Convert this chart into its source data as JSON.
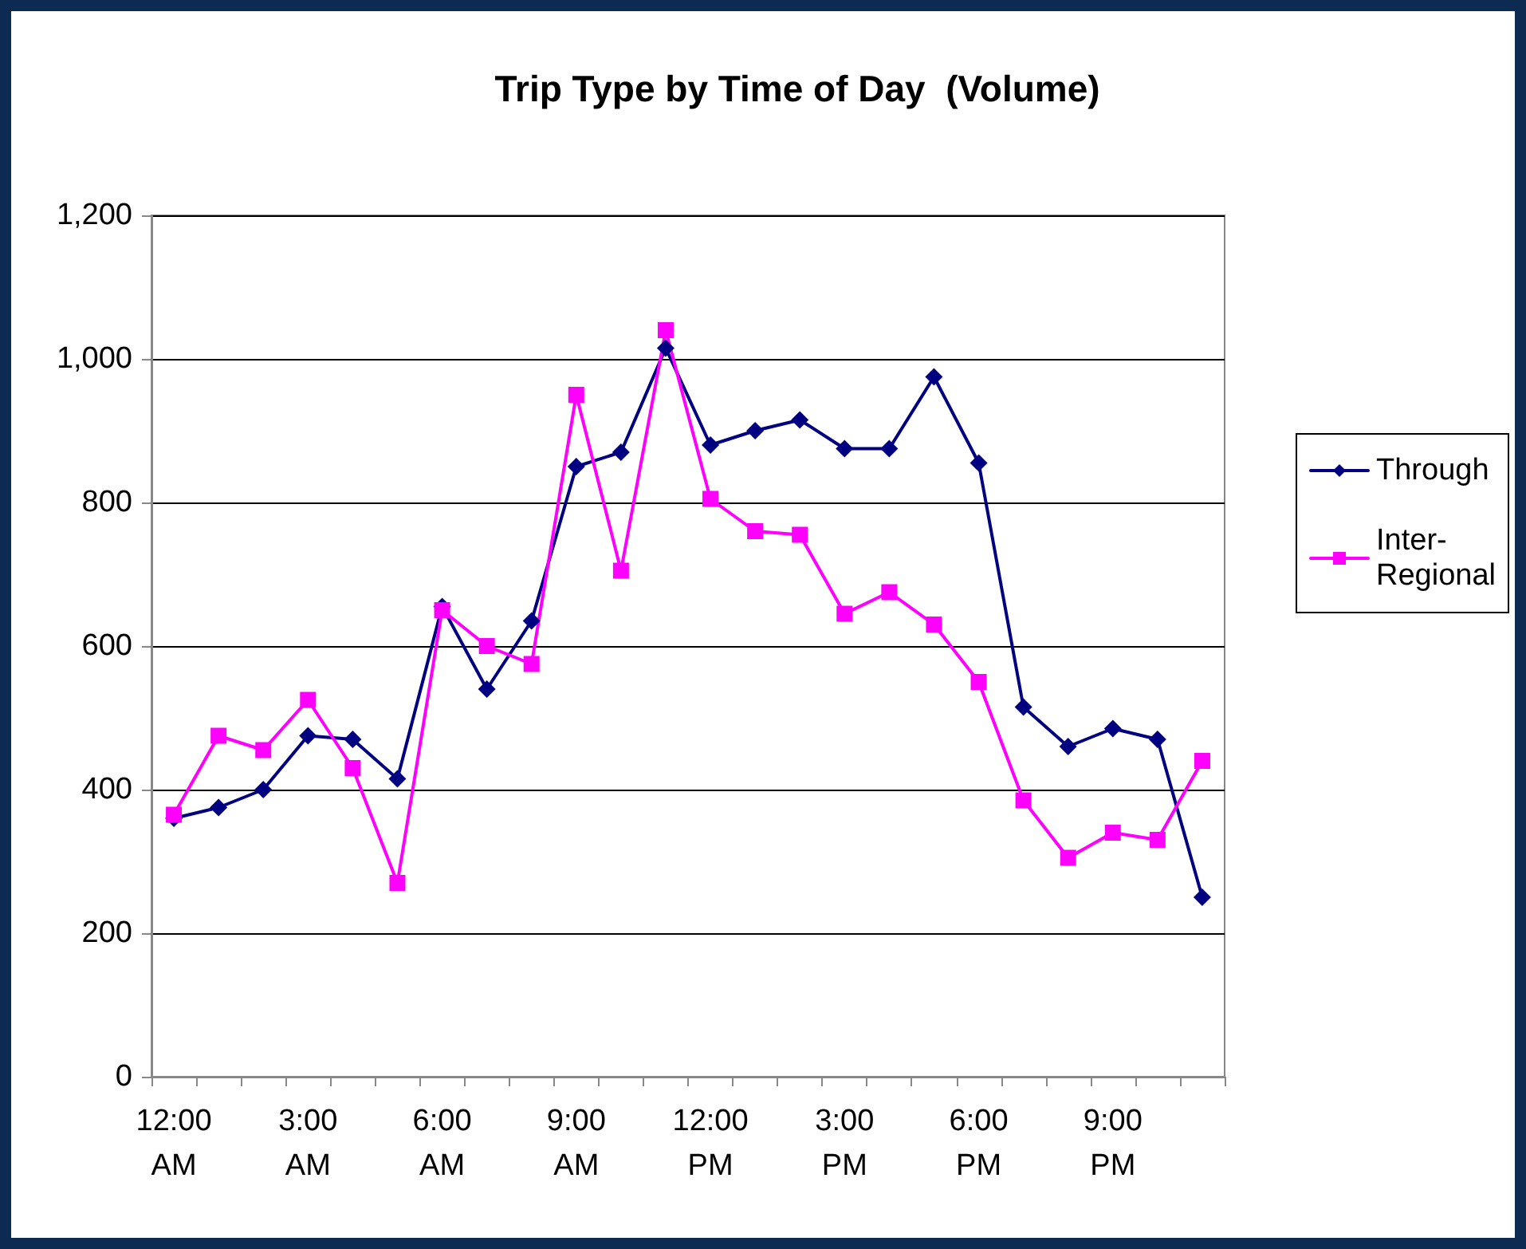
{
  "chart_data": {
    "type": "line",
    "title": "Trip Type by Time of Day  (Volume)",
    "categories": [
      "12:00 AM",
      null,
      null,
      "3:00 AM",
      null,
      null,
      "6:00 AM",
      null,
      null,
      "9:00 AM",
      null,
      null,
      "12:00 PM",
      null,
      null,
      "3:00 PM",
      null,
      null,
      "6:00 PM",
      null,
      null,
      "9:00 PM",
      null,
      null
    ],
    "series": [
      {
        "name": "Through",
        "color": "#000080",
        "marker": "diamond",
        "values": [
          360,
          375,
          400,
          475,
          470,
          415,
          655,
          540,
          635,
          850,
          870,
          1015,
          880,
          900,
          915,
          875,
          875,
          975,
          855,
          515,
          460,
          485,
          470,
          250
        ]
      },
      {
        "name": "Inter-Regional",
        "color": "#ff00ff",
        "marker": "square",
        "values": [
          365,
          475,
          455,
          525,
          430,
          270,
          650,
          600,
          575,
          950,
          705,
          1040,
          805,
          760,
          755,
          645,
          675,
          630,
          550,
          385,
          305,
          340,
          330,
          440
        ]
      }
    ],
    "ylim": [
      0,
      1200
    ],
    "yticks": [
      0,
      200,
      400,
      600,
      800,
      {
        "value": 1000,
        "label": "1,000"
      },
      {
        "value": 1200,
        "label": "1,200"
      }
    ],
    "grid": "y",
    "legend": "right",
    "line_style": "solid"
  }
}
